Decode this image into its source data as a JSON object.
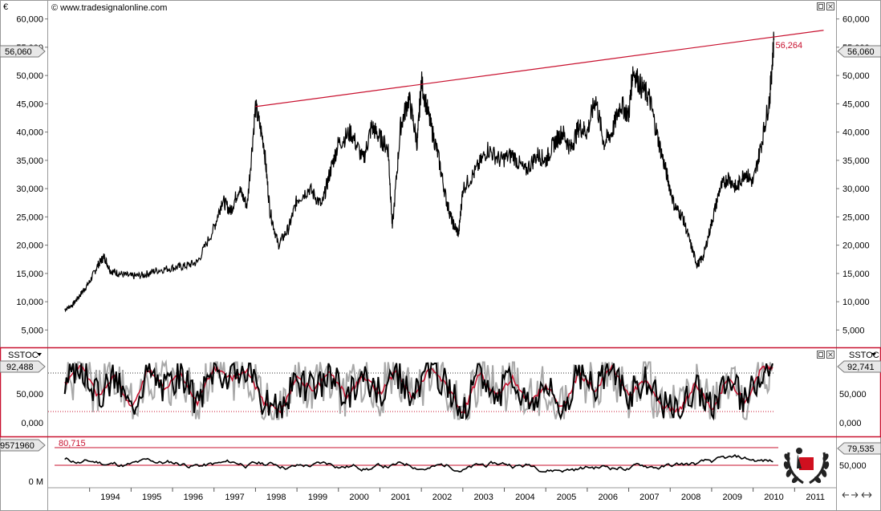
{
  "window": {
    "currency": "€",
    "source": "© www.tradesignalonline.com",
    "max_icon": "restore-icon",
    "close_icon": "close-icon"
  },
  "colors": {
    "price_line": "#000000",
    "trend_line": "#c8102e",
    "stoch_fast": "#a8a8a8",
    "stoch_slow": "#000000",
    "stoch_signal": "#c8102e",
    "panel_border": "#c8102e",
    "tag_bg": "#e8e8e8"
  },
  "price_panel": {
    "current_tag": "56,060",
    "trendline_label": "56,264",
    "y_ticks": [
      "60,000",
      "55,000",
      "50,000",
      "45,000",
      "40,000",
      "35,000",
      "30,000",
      "25,000",
      "20,000",
      "15,000",
      "10,000",
      "5,000"
    ]
  },
  "stoch_panel": {
    "name": "SSTOC",
    "left_tag": "92,488",
    "right_tag": "92,741",
    "y_ticks": [
      "50,000",
      "0,000"
    ],
    "left_ticks": [
      "50,000",
      "0,000"
    ]
  },
  "bottom_panel": {
    "left_tag": "9571960",
    "level_label": "80,715",
    "right_tag": "79,535",
    "y_ticks": [
      "50,000"
    ],
    "left_ticks": [
      "0 M"
    ]
  },
  "x_axis": {
    "years": [
      "1994",
      "1995",
      "1996",
      "1997",
      "1998",
      "1999",
      "2000",
      "2001",
      "2002",
      "2003",
      "2004",
      "2005",
      "2006",
      "2007",
      "2008",
      "2009",
      "2010",
      "2011"
    ]
  },
  "scroll_icons": [
    "scroll-left-icon",
    "scroll-right-icon",
    "zoom-icon"
  ],
  "logo": "laurel-wreath-logo",
  "chart_data": {
    "type": "line",
    "x_unit": "year",
    "y_range": [
      2500,
      62500
    ],
    "grid": false,
    "price_series": {
      "x": [
        1993.4,
        1993.6,
        1993.8,
        1994.0,
        1994.2,
        1994.35,
        1994.5,
        1994.7,
        1995.0,
        1995.3,
        1995.6,
        1996.0,
        1996.3,
        1996.6,
        1997.0,
        1997.2,
        1997.4,
        1997.6,
        1997.8,
        1998.0,
        1998.2,
        1998.35,
        1998.55,
        1998.8,
        1999.0,
        1999.3,
        1999.6,
        1999.8,
        2000.0,
        2000.3,
        2000.6,
        2000.8,
        2001.0,
        2001.2,
        2001.3,
        2001.5,
        2001.7,
        2001.9,
        2002.0,
        2002.2,
        2002.4,
        2002.6,
        2002.75,
        2002.9,
        2003.0,
        2003.3,
        2003.6,
        2003.9,
        2004.2,
        2004.5,
        2004.8,
        2005.0,
        2005.2,
        2005.4,
        2005.6,
        2005.8,
        2006.0,
        2006.2,
        2006.4,
        2006.6,
        2006.8,
        2007.0,
        2007.1,
        2007.3,
        2007.5,
        2007.7,
        2007.9,
        2008.1,
        2008.3,
        2008.5,
        2008.65,
        2008.8,
        2009.0,
        2009.2,
        2009.4,
        2009.6,
        2009.8,
        2010.0,
        2010.2,
        2010.4,
        2010.5
      ],
      "y": [
        8600,
        9500,
        11500,
        13500,
        16500,
        18000,
        15500,
        15000,
        14500,
        14700,
        15500,
        16000,
        16300,
        17000,
        23000,
        28000,
        26000,
        30000,
        27000,
        44500,
        38000,
        26000,
        20000,
        23000,
        28000,
        30000,
        27000,
        33000,
        38000,
        40000,
        35000,
        41000,
        39000,
        37000,
        23000,
        41000,
        46000,
        38000,
        49000,
        42000,
        36000,
        28000,
        24000,
        22000,
        30000,
        33000,
        37000,
        35000,
        36000,
        33000,
        36000,
        35000,
        38000,
        40000,
        37000,
        41000,
        40000,
        46000,
        38000,
        40000,
        45000,
        43000,
        51000,
        48000,
        46000,
        39000,
        33000,
        27000,
        25000,
        20000,
        16500,
        18000,
        24000,
        30000,
        32000,
        30000,
        33000,
        31000,
        38000,
        46000,
        56264
      ]
    },
    "trend_line": {
      "x": [
        1998.0,
        2010.5,
        2011.7
      ],
      "y": [
        44500,
        56264,
        58000
      ],
      "label": "56,264"
    },
    "stochastic": {
      "name": "SSTOC",
      "ticks": [
        "50,000",
        "0,000"
      ],
      "last_left": "92,488",
      "last_right": "92,741",
      "slow_x": [
        1993.4,
        1993.8,
        1994.2,
        1994.6,
        1995.0,
        1995.4,
        1995.8,
        1996.2,
        1996.6,
        1997.0,
        1997.4,
        1997.8,
        1998.2,
        1998.6,
        1999.0,
        1999.4,
        1999.8,
        2000.2,
        2000.6,
        2001.0,
        2001.4,
        2001.8,
        2002.2,
        2002.6,
        2003.0,
        2003.4,
        2003.8,
        2004.2,
        2004.6,
        2005.0,
        2005.4,
        2005.8,
        2006.2,
        2006.6,
        2007.0,
        2007.4,
        2007.8,
        2008.2,
        2008.6,
        2009.0,
        2009.4,
        2009.8,
        2010.2,
        2010.5
      ],
      "slow_y": [
        60,
        95,
        40,
        75,
        20,
        85,
        55,
        80,
        30,
        90,
        70,
        85,
        30,
        15,
        70,
        50,
        80,
        40,
        75,
        45,
        85,
        35,
        90,
        60,
        10,
        80,
        40,
        70,
        30,
        60,
        20,
        80,
        50,
        90,
        40,
        70,
        25,
        15,
        60,
        20,
        70,
        30,
        85,
        92
      ]
    },
    "bottom_indicator": {
      "level": 80.715,
      "lower_level": 50,
      "last_value": "79,535",
      "ticks": [
        "50,000"
      ]
    }
  }
}
